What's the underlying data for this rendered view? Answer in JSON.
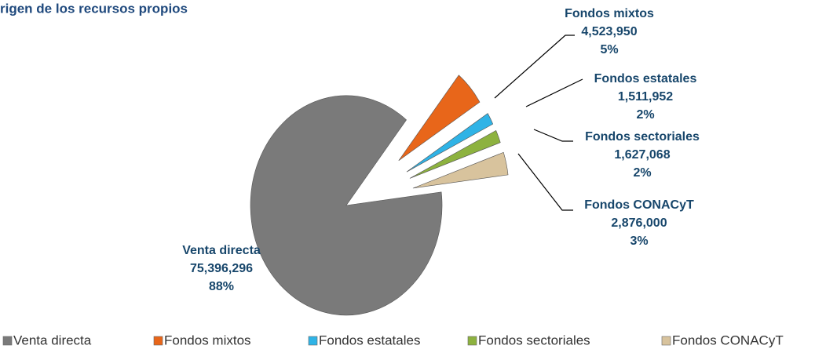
{
  "chart_data": {
    "type": "pie",
    "title": "rigen de los recursos propios",
    "categories": [
      "Venta directa",
      "Fondos mixtos",
      "Fondos estatales",
      "Fondos sectoriales",
      "Fondos CONACyT"
    ],
    "values": [
      75396296,
      4523950,
      1511952,
      1627068,
      2876000
    ],
    "value_labels": [
      "75,396,296",
      "4,523,950",
      "1,511,952",
      "1,627,068",
      "2,876,000"
    ],
    "percent_labels": [
      "88%",
      "5%",
      "2%",
      "2%",
      "3%"
    ],
    "colors": [
      "#7a7a7a",
      "#e8661a",
      "#2fb3e6",
      "#8db23f",
      "#d8c39d"
    ],
    "legend": "bottom"
  }
}
